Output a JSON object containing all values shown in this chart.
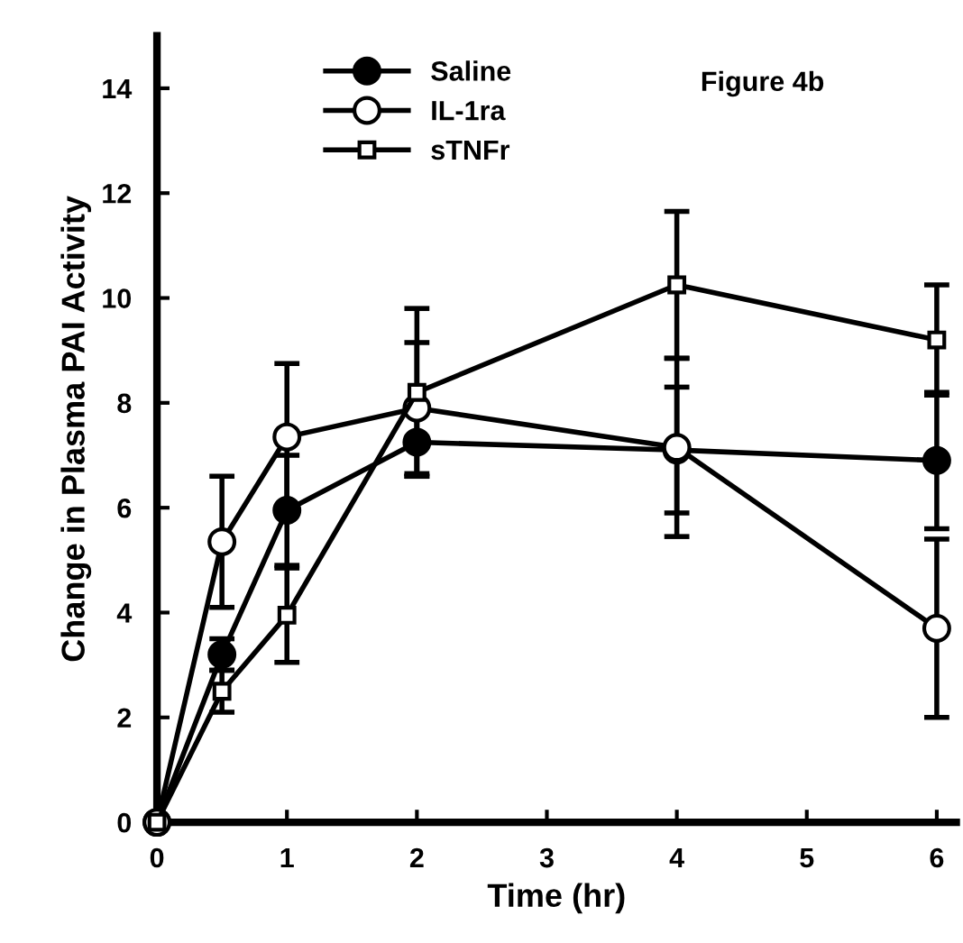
{
  "chart_data": {
    "type": "line",
    "xlabel": "Time (hr)",
    "ylabel": "Change in Plasma PAI Activity",
    "annotations": [
      "Figure 4b"
    ],
    "x": [
      0,
      0.5,
      1,
      2,
      4,
      6
    ],
    "series": [
      {
        "name": "Saline",
        "color": "#000000",
        "marker": "circle",
        "values": [
          0,
          3.2,
          5.95,
          7.25,
          7.1,
          6.9
        ],
        "errors": [
          null,
          0.3,
          1.05,
          0.65,
          1.2,
          1.3
        ]
      },
      {
        "name": "IL-1ra",
        "color": "#000000",
        "marker": "circle",
        "values": [
          0,
          5.35,
          7.35,
          7.9,
          7.15,
          3.7
        ],
        "errors": [
          null,
          1.25,
          1.4,
          1.25,
          1.7,
          1.7
        ]
      },
      {
        "name": "sTNFr",
        "color": "#000000",
        "marker": "square",
        "values": [
          0,
          2.5,
          3.95,
          8.2,
          10.25,
          9.2
        ],
        "errors": [
          null,
          0.4,
          0.9,
          1.6,
          1.4,
          1.05
        ]
      }
    ],
    "xlim": [
      0,
      6.15
    ],
    "ylim": [
      0,
      15
    ],
    "xticks": [
      0,
      1,
      2,
      3,
      4,
      5,
      6
    ],
    "yticks": [
      0,
      2,
      4,
      6,
      8,
      10,
      12,
      14
    ],
    "grid": false,
    "legend": "top left",
    "line_style": "solid"
  }
}
